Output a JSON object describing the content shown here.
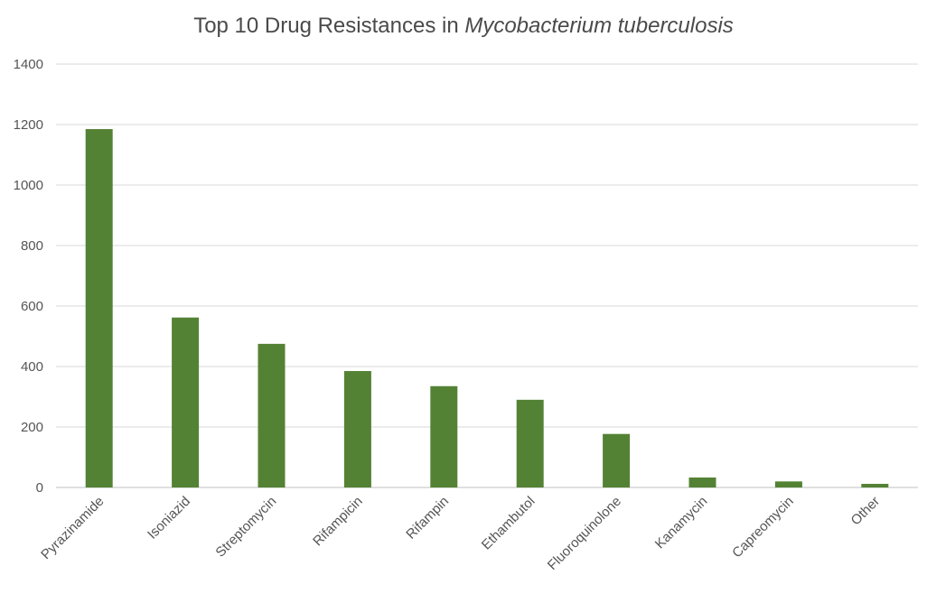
{
  "chart_data": {
    "type": "bar",
    "title_prefix": "Top 10 Drug Resistances in ",
    "title_italic": "Mycobacterium tuberculosis",
    "xlabel": "",
    "ylabel": "",
    "categories": [
      "Pyrazinamide",
      "Isoniazid",
      "Streptomycin",
      "Rifampicin",
      "Rifampin",
      "Ethambutol",
      "Fluoroquinolone",
      "Kanamycin",
      "Capreomycin",
      "Other"
    ],
    "values": [
      1185,
      562,
      475,
      385,
      335,
      290,
      177,
      33,
      20,
      12
    ],
    "ylim": [
      0,
      1400
    ],
    "yticks": [
      "0",
      "200",
      "400",
      "600",
      "800",
      "1000",
      "1200",
      "1400"
    ],
    "grid": true,
    "legend": "none",
    "bar_color": "#548235"
  }
}
